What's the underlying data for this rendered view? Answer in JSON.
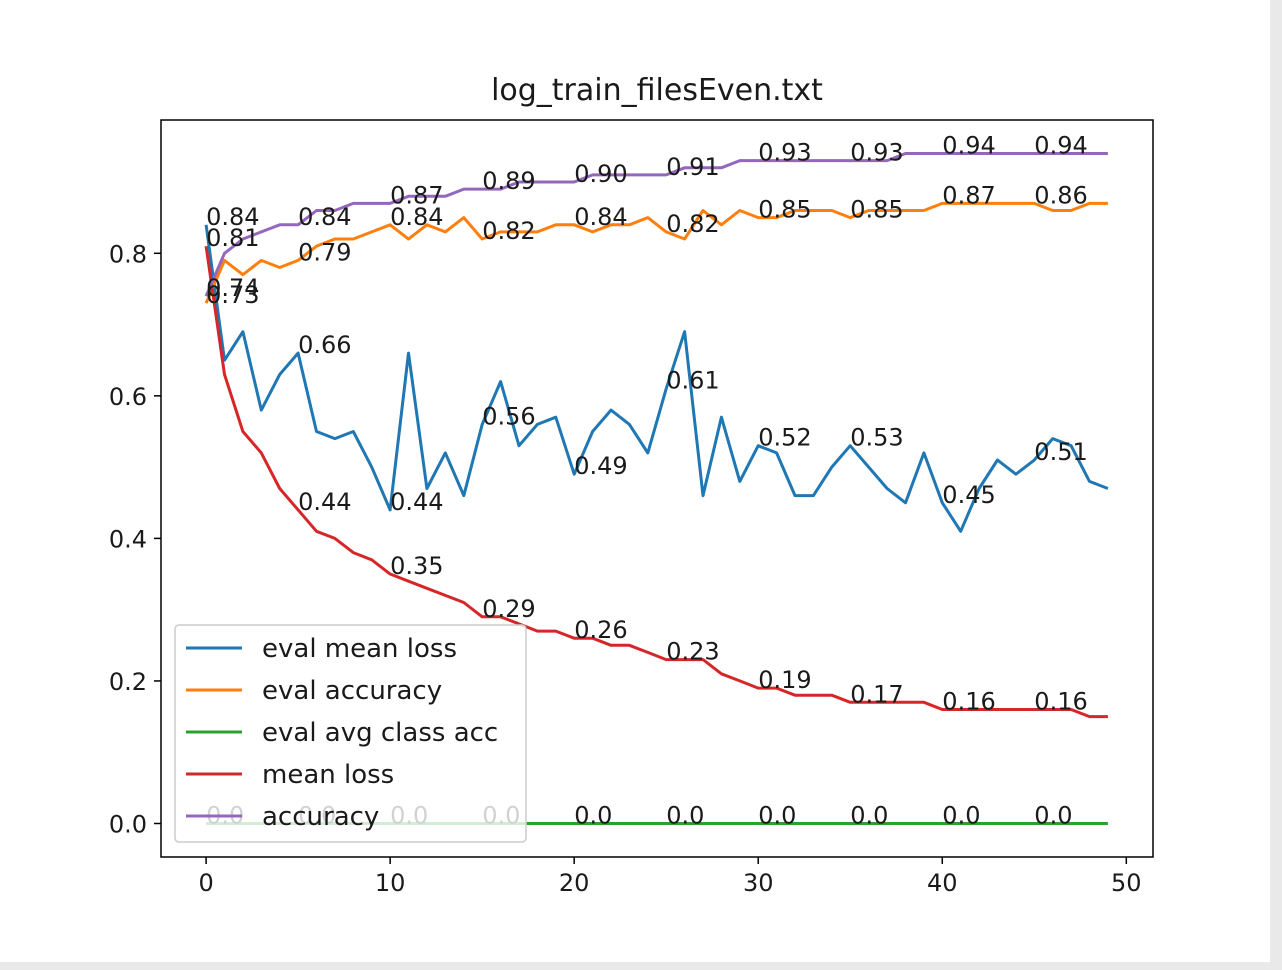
{
  "chart_data": {
    "type": "line",
    "title": "log_train_filesEven.txt",
    "xlabel": "",
    "ylabel": "",
    "xlim": [
      -2.45,
      51.45
    ],
    "ylim": [
      -0.047,
      0.987
    ],
    "xticks": [
      0,
      10,
      20,
      30,
      40,
      50
    ],
    "yticks": [
      0.0,
      0.2,
      0.4,
      0.6,
      0.8
    ],
    "ytick_labels": [
      "0.0",
      "0.2",
      "0.4",
      "0.6",
      "0.8"
    ],
    "grid": false,
    "legend": "lower-left",
    "x": [
      0,
      1,
      2,
      3,
      4,
      5,
      6,
      7,
      8,
      9,
      10,
      11,
      12,
      13,
      14,
      15,
      16,
      17,
      18,
      19,
      20,
      21,
      22,
      23,
      24,
      25,
      26,
      27,
      28,
      29,
      30,
      31,
      32,
      33,
      34,
      35,
      36,
      37,
      38,
      39,
      40,
      41,
      42,
      43,
      44,
      45,
      46,
      47,
      48,
      49
    ],
    "series": [
      {
        "name": "eval mean loss",
        "color": "#1f77b4",
        "values": [
          0.84,
          0.65,
          0.69,
          0.58,
          0.63,
          0.66,
          0.55,
          0.54,
          0.55,
          0.5,
          0.44,
          0.66,
          0.47,
          0.52,
          0.46,
          0.56,
          0.62,
          0.53,
          0.56,
          0.57,
          0.49,
          0.55,
          0.58,
          0.56,
          0.52,
          0.61,
          0.69,
          0.46,
          0.57,
          0.48,
          0.53,
          0.52,
          0.46,
          0.46,
          0.5,
          0.53,
          0.5,
          0.47,
          0.45,
          0.52,
          0.45,
          0.41,
          0.47,
          0.51,
          0.49,
          0.51,
          0.54,
          0.53,
          0.48,
          0.47
        ],
        "labels": [
          {
            "x": 0,
            "text": "0.84"
          },
          {
            "x": 5,
            "text": "0.66"
          },
          {
            "x": 10,
            "text": "0.44"
          },
          {
            "x": 15,
            "text": "0.56"
          },
          {
            "x": 20,
            "text": "0.49"
          },
          {
            "x": 25,
            "text": "0.61"
          },
          {
            "x": 30,
            "text": "0.52"
          },
          {
            "x": 35,
            "text": "0.53"
          },
          {
            "x": 40,
            "text": "0.45"
          },
          {
            "x": 45,
            "text": "0.51"
          }
        ]
      },
      {
        "name": "eval accuracy",
        "color": "#ff7f0e",
        "values": [
          0.73,
          0.79,
          0.77,
          0.79,
          0.78,
          0.79,
          0.81,
          0.82,
          0.82,
          0.83,
          0.84,
          0.82,
          0.84,
          0.83,
          0.85,
          0.82,
          0.83,
          0.83,
          0.83,
          0.84,
          0.84,
          0.83,
          0.84,
          0.84,
          0.85,
          0.83,
          0.82,
          0.86,
          0.84,
          0.86,
          0.85,
          0.85,
          0.86,
          0.86,
          0.86,
          0.85,
          0.86,
          0.86,
          0.86,
          0.86,
          0.87,
          0.87,
          0.87,
          0.87,
          0.87,
          0.87,
          0.86,
          0.86,
          0.87,
          0.87
        ],
        "labels": [
          {
            "x": 0,
            "text": "0.73"
          },
          {
            "x": 5,
            "text": "0.79"
          },
          {
            "x": 10,
            "text": "0.84"
          },
          {
            "x": 15,
            "text": "0.82"
          },
          {
            "x": 20,
            "text": "0.84"
          },
          {
            "x": 25,
            "text": "0.82"
          },
          {
            "x": 30,
            "text": "0.85"
          },
          {
            "x": 35,
            "text": "0.85"
          },
          {
            "x": 40,
            "text": "0.87"
          },
          {
            "x": 45,
            "text": "0.86"
          }
        ]
      },
      {
        "name": "eval avg class acc",
        "color": "#2ca02c",
        "values": [
          0.0,
          0.0,
          0.0,
          0.0,
          0.0,
          0.0,
          0.0,
          0.0,
          0.0,
          0.0,
          0.0,
          0.0,
          0.0,
          0.0,
          0.0,
          0.0,
          0.0,
          0.0,
          0.0,
          0.0,
          0.0,
          0.0,
          0.0,
          0.0,
          0.0,
          0.0,
          0.0,
          0.0,
          0.0,
          0.0,
          0.0,
          0.0,
          0.0,
          0.0,
          0.0,
          0.0,
          0.0,
          0.0,
          0.0,
          0.0,
          0.0,
          0.0,
          0.0,
          0.0,
          0.0,
          0.0,
          0.0,
          0.0,
          0.0,
          0.0
        ],
        "labels": [
          {
            "x": 0,
            "text": "0.0"
          },
          {
            "x": 5,
            "text": "0.0"
          },
          {
            "x": 10,
            "text": "0.0"
          },
          {
            "x": 15,
            "text": "0.0"
          },
          {
            "x": 20,
            "text": "0.0"
          },
          {
            "x": 25,
            "text": "0.0"
          },
          {
            "x": 30,
            "text": "0.0"
          },
          {
            "x": 35,
            "text": "0.0"
          },
          {
            "x": 40,
            "text": "0.0"
          },
          {
            "x": 45,
            "text": "0.0"
          }
        ]
      },
      {
        "name": "mean loss",
        "color": "#d62728",
        "values": [
          0.81,
          0.63,
          0.55,
          0.52,
          0.47,
          0.44,
          0.41,
          0.4,
          0.38,
          0.37,
          0.35,
          0.34,
          0.33,
          0.32,
          0.31,
          0.29,
          0.29,
          0.28,
          0.27,
          0.27,
          0.26,
          0.26,
          0.25,
          0.25,
          0.24,
          0.23,
          0.23,
          0.23,
          0.21,
          0.2,
          0.19,
          0.19,
          0.18,
          0.18,
          0.18,
          0.17,
          0.17,
          0.17,
          0.17,
          0.17,
          0.16,
          0.16,
          0.16,
          0.16,
          0.16,
          0.16,
          0.16,
          0.16,
          0.15,
          0.15
        ],
        "labels": [
          {
            "x": 0,
            "text": "0.81"
          },
          {
            "x": 5,
            "text": "0.44"
          },
          {
            "x": 10,
            "text": "0.35"
          },
          {
            "x": 15,
            "text": "0.29"
          },
          {
            "x": 20,
            "text": "0.26"
          },
          {
            "x": 25,
            "text": "0.23"
          },
          {
            "x": 30,
            "text": "0.19"
          },
          {
            "x": 35,
            "text": "0.17"
          },
          {
            "x": 40,
            "text": "0.16"
          },
          {
            "x": 45,
            "text": "0.16"
          }
        ]
      },
      {
        "name": "accuracy",
        "color": "#9467bd",
        "values": [
          0.74,
          0.8,
          0.82,
          0.83,
          0.84,
          0.84,
          0.86,
          0.86,
          0.87,
          0.87,
          0.87,
          0.88,
          0.88,
          0.88,
          0.89,
          0.89,
          0.89,
          0.9,
          0.9,
          0.9,
          0.9,
          0.91,
          0.91,
          0.91,
          0.91,
          0.91,
          0.92,
          0.92,
          0.92,
          0.93,
          0.93,
          0.93,
          0.93,
          0.93,
          0.93,
          0.93,
          0.93,
          0.93,
          0.94,
          0.94,
          0.94,
          0.94,
          0.94,
          0.94,
          0.94,
          0.94,
          0.94,
          0.94,
          0.94,
          0.94
        ],
        "labels": [
          {
            "x": 0,
            "text": "0.74"
          },
          {
            "x": 5,
            "text": "0.84"
          },
          {
            "x": 10,
            "text": "0.87"
          },
          {
            "x": 15,
            "text": "0.89"
          },
          {
            "x": 20,
            "text": "0.90"
          },
          {
            "x": 25,
            "text": "0.91"
          },
          {
            "x": 30,
            "text": "0.93"
          },
          {
            "x": 35,
            "text": "0.93"
          },
          {
            "x": 40,
            "text": "0.94"
          },
          {
            "x": 45,
            "text": "0.94"
          }
        ]
      }
    ]
  }
}
